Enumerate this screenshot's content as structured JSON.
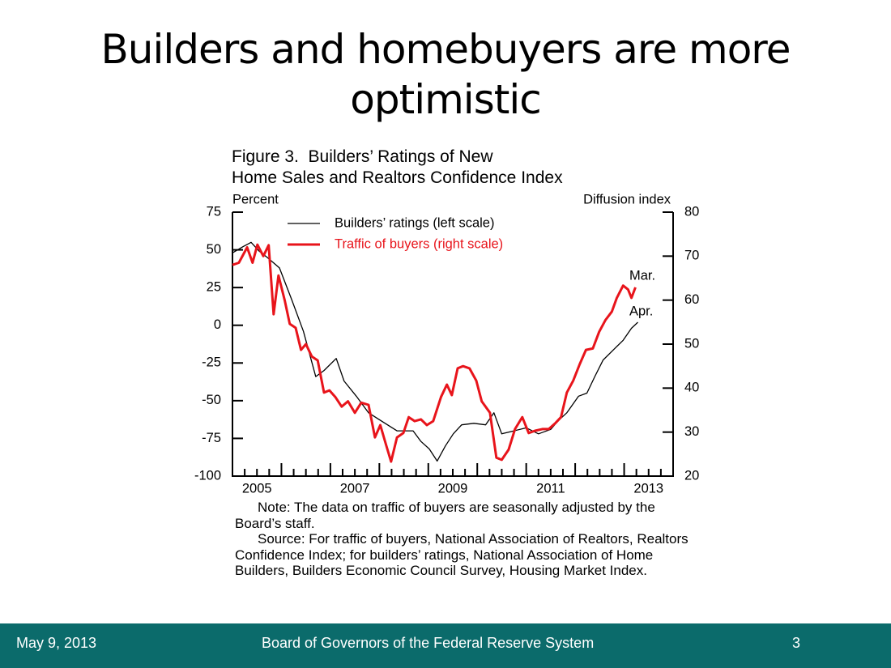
{
  "slide": {
    "title": "Builders and homebuyers are more optimistic",
    "footer": {
      "date": "May 9, 2013",
      "org": "Board of Governors of the Federal Reserve System",
      "page": "3"
    }
  },
  "chart_data": {
    "type": "line",
    "title": "Figure 3.  Builders’ Ratings of New\nHome Sales and Realtors Confidence Index",
    "y_label": "Percent",
    "y2_label": "Diffusion index",
    "note": "Note:  The data on traffic of buyers are seasonally adjusted by the Board’s staff.",
    "source": "Source:  For traffic of buyers, National Association of Realtors, Realtors Confidence Index; for builders’ ratings, National Association of Home Builders, Builders Economic Council Survey, Housing Market Index.",
    "annotations": [
      "Mar.",
      "Apr."
    ],
    "legend": "upper left",
    "xlim": [
      2005,
      2014
    ],
    "xticks": [
      {
        "value": 2005.5,
        "label": "2005"
      },
      {
        "value": 2007.5,
        "label": "2007"
      },
      {
        "value": 2009.5,
        "label": "2009"
      },
      {
        "value": 2011.5,
        "label": "2011"
      },
      {
        "value": 2013.5,
        "label": "2013"
      }
    ],
    "ylim": [
      -100,
      75
    ],
    "yticks": [
      -100,
      -75,
      -50,
      -25,
      0,
      25,
      50,
      75
    ],
    "y2lim": [
      20,
      80
    ],
    "y2ticks": [
      20,
      30,
      40,
      50,
      60,
      70,
      80
    ],
    "series": [
      {
        "name": "Builders’ ratings (left scale)",
        "color": "#000000",
        "x": [
          2005.0,
          2005.21,
          2005.38,
          2005.55,
          2005.71,
          2005.96,
          2006.21,
          2006.45,
          2006.7,
          2006.87,
          2007.12,
          2007.28,
          2007.53,
          2007.78,
          2008.02,
          2008.36,
          2008.69,
          2008.85,
          2009.02,
          2009.18,
          2009.35,
          2009.51,
          2009.68,
          2009.93,
          2010.17,
          2010.34,
          2010.5,
          2010.75,
          2011.0,
          2011.25,
          2011.5,
          2011.66,
          2011.83,
          2012.07,
          2012.24,
          2012.4,
          2012.57,
          2012.82,
          2012.98,
          2013.15,
          2013.28
        ],
        "values": [
          48,
          52,
          55,
          49,
          45,
          38,
          17,
          -4,
          -34,
          -30,
          -22,
          -37,
          -47,
          -58,
          -63,
          -70,
          -70,
          -77,
          -82,
          -90,
          -80,
          -72,
          -66,
          -65,
          -66,
          -58,
          -72,
          -70,
          -68,
          -72,
          -69,
          -63,
          -58,
          -47,
          -45,
          -34,
          -23,
          -15,
          -10,
          -2,
          2
        ]
      },
      {
        "name": "Traffic of buyers (right scale)",
        "color": "#e8141b",
        "axis": "y2",
        "x": [
          2005.0,
          2005.13,
          2005.3,
          2005.41,
          2005.51,
          2005.63,
          2005.74,
          2005.84,
          2005.94,
          2006.07,
          2006.17,
          2006.29,
          2006.4,
          2006.5,
          2006.62,
          2006.74,
          2006.87,
          2006.98,
          2007.1,
          2007.23,
          2007.36,
          2007.5,
          2007.63,
          2007.78,
          2007.91,
          2008.02,
          2008.14,
          2008.24,
          2008.36,
          2008.49,
          2008.6,
          2008.72,
          2008.85,
          2008.97,
          2009.1,
          2009.26,
          2009.38,
          2009.48,
          2009.6,
          2009.71,
          2009.84,
          2009.98,
          2010.09,
          2010.26,
          2010.39,
          2010.5,
          2010.64,
          2010.77,
          2010.92,
          2011.05,
          2011.18,
          2011.33,
          2011.46,
          2011.6,
          2011.71,
          2011.83,
          2011.96,
          2012.09,
          2012.22,
          2012.36,
          2012.49,
          2012.62,
          2012.75,
          2012.85,
          2012.98,
          2013.08,
          2013.15,
          2013.23
        ],
        "values": [
          68,
          68.5,
          72,
          68.5,
          72.6,
          70,
          72.5,
          56.8,
          65.6,
          59.8,
          54.6,
          53.7,
          48.7,
          50,
          47.2,
          46.3,
          39,
          39.5,
          38,
          35.8,
          37,
          34.4,
          36.7,
          36.2,
          28.8,
          31.6,
          27,
          23.3,
          28.8,
          29.8,
          33.4,
          32.5,
          32.9,
          31.6,
          32.5,
          38,
          40.8,
          38.4,
          44.5,
          45,
          44.5,
          41.7,
          37,
          34.4,
          24.2,
          23.7,
          26,
          30.7,
          33.4,
          29.8,
          30.3,
          30.7,
          30.7,
          32.1,
          33.4,
          39,
          41.7,
          45.4,
          48.7,
          49,
          52.8,
          55.5,
          57.4,
          60.5,
          63.3,
          62.4,
          60.5,
          62.9
        ]
      }
    ]
  }
}
